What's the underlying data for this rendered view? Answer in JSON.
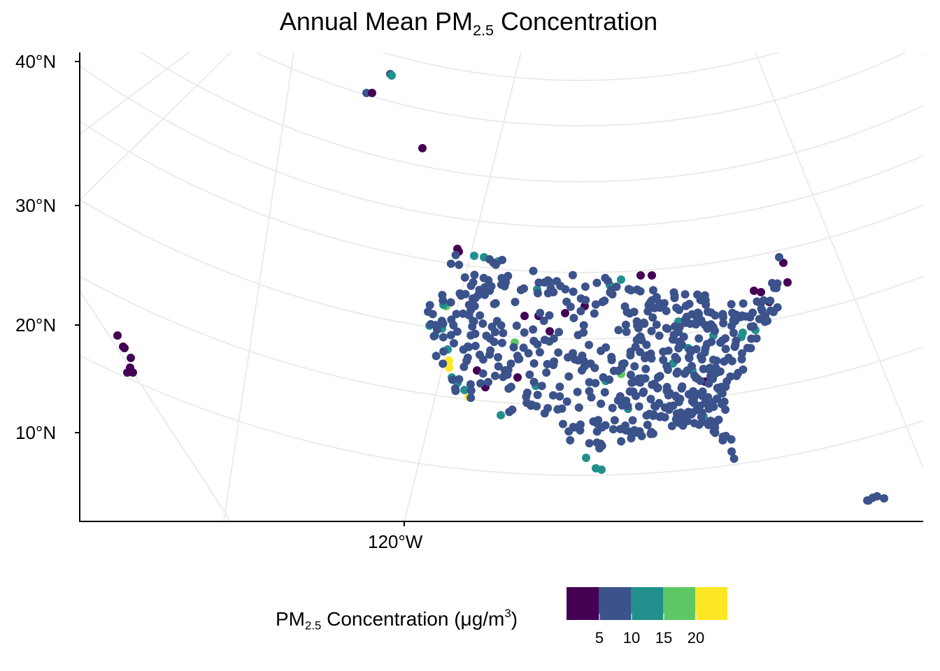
{
  "title": {
    "prefix": "Annual Mean PM",
    "subscript": "2.5",
    "suffix": " Concentration"
  },
  "axes": {
    "y_ticks": [
      "40°N",
      "30°N",
      "20°N",
      "10°N"
    ],
    "x_ticks": [
      "120°W"
    ]
  },
  "legend": {
    "title_prefix": "PM",
    "title_subscript": "2.5",
    "title_middle": " Concentration (μg/m",
    "title_superscript": "3",
    "title_suffix": ")",
    "bins": [
      {
        "color": "#440154"
      },
      {
        "color": "#3B528B"
      },
      {
        "color": "#21908C"
      },
      {
        "color": "#5DC863"
      },
      {
        "color": "#FDE725"
      }
    ],
    "tick_labels": [
      "5",
      "10",
      "15",
      "20"
    ]
  },
  "colors": {
    "level_1": "#440154",
    "level_2": "#3B528B",
    "level_3": "#21908C",
    "level_4": "#5DC863",
    "level_5": "#FDE725",
    "graticule": "#EBEBEB",
    "axis": "#000000"
  }
}
